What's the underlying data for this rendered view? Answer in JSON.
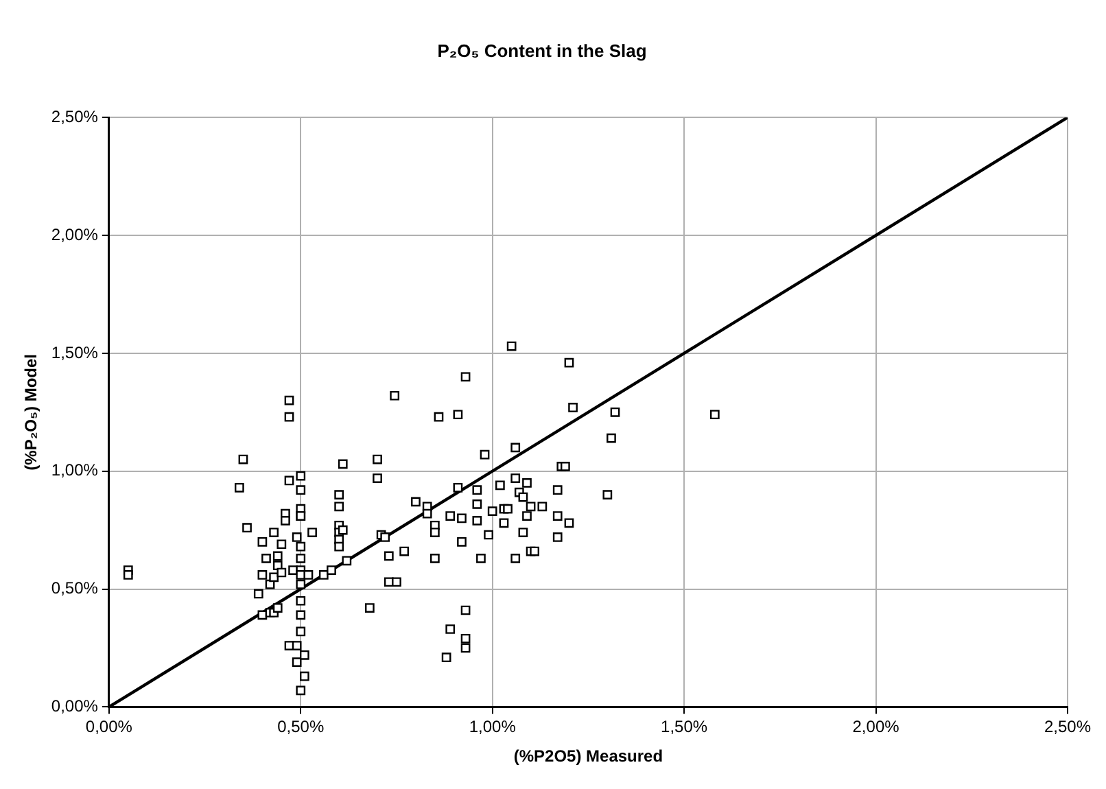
{
  "chart_data": {
    "type": "scatter",
    "title": "P₂O₅ Content in the Slag",
    "xlabel": "(%P2O5) Measured",
    "ylabel": "(%P₂O₅) Model",
    "xlim": [
      0,
      2.5
    ],
    "ylim": [
      0,
      2.5
    ],
    "xticks": [
      {
        "value": 0,
        "label": "0,00%"
      },
      {
        "value": 0.5,
        "label": "0,50%"
      },
      {
        "value": 1,
        "label": "1,00%"
      },
      {
        "value": 1.5,
        "label": "1,50%"
      },
      {
        "value": 2,
        "label": "2,00%"
      },
      {
        "value": 2.5,
        "label": "2,50%"
      }
    ],
    "yticks": [
      {
        "value": 0,
        "label": "0,00%"
      },
      {
        "value": 0.5,
        "label": "0,50%"
      },
      {
        "value": 1,
        "label": "1,00%"
      },
      {
        "value": 1.5,
        "label": "1,50%"
      },
      {
        "value": 2,
        "label": "2,00%"
      },
      {
        "value": 2.5,
        "label": "2,50%"
      }
    ],
    "grid": true,
    "legend": false,
    "marker": "square",
    "series": [
      {
        "color": "#000000",
        "x": [
          0.05,
          0.05,
          0.34,
          0.35,
          0.36,
          0.39,
          0.4,
          0.4,
          0.4,
          0.41,
          0.42,
          0.42,
          0.43,
          0.43,
          0.43,
          0.44,
          0.44,
          0.44,
          0.45,
          0.45,
          0.46,
          0.46,
          0.47,
          0.47,
          0.47,
          0.47,
          0.48,
          0.49,
          0.49,
          0.49,
          0.5,
          0.5,
          0.5,
          0.5,
          0.5,
          0.5,
          0.5,
          0.5,
          0.5,
          0.5,
          0.5,
          0.5,
          0.5,
          0.5,
          0.51,
          0.51,
          0.52,
          0.53,
          0.56,
          0.58,
          0.6,
          0.6,
          0.6,
          0.6,
          0.6,
          0.6,
          0.61,
          0.61,
          0.62,
          0.68,
          0.7,
          0.7,
          0.71,
          0.72,
          0.73,
          0.73,
          0.745,
          0.75,
          0.77,
          0.8,
          0.83,
          0.83,
          0.85,
          0.85,
          0.85,
          0.86,
          0.88,
          0.89,
          0.89,
          0.91,
          0.91,
          0.92,
          0.92,
          0.93,
          0.93,
          0.93,
          0.93,
          0.96,
          0.96,
          0.96,
          0.97,
          0.98,
          0.99,
          1.0,
          1.02,
          1.03,
          1.03,
          1.04,
          1.05,
          1.06,
          1.06,
          1.06,
          1.07,
          1.08,
          1.08,
          1.09,
          1.09,
          1.1,
          1.1,
          1.11,
          1.13,
          1.17,
          1.17,
          1.17,
          1.18,
          1.19,
          1.2,
          1.2,
          1.21,
          1.3,
          1.31,
          1.32,
          1.58
        ],
        "values": [
          0.58,
          0.56,
          0.93,
          1.05,
          0.76,
          0.48,
          0.7,
          0.56,
          0.39,
          0.63,
          0.52,
          0.4,
          0.74,
          0.55,
          0.4,
          0.64,
          0.6,
          0.42,
          0.69,
          0.57,
          0.82,
          0.79,
          1.3,
          1.23,
          0.96,
          0.26,
          0.58,
          0.72,
          0.19,
          0.26,
          0.98,
          0.92,
          0.84,
          0.81,
          0.68,
          0.63,
          0.58,
          0.52,
          0.45,
          0.39,
          0.32,
          0.07,
          0.56,
          0.81,
          0.22,
          0.13,
          0.56,
          0.74,
          0.56,
          0.58,
          0.9,
          0.85,
          0.77,
          0.74,
          0.71,
          0.68,
          1.03,
          0.75,
          0.62,
          0.42,
          1.05,
          0.97,
          0.73,
          0.72,
          0.64,
          0.53,
          1.32,
          0.53,
          0.66,
          0.87,
          0.85,
          0.82,
          0.77,
          0.74,
          0.63,
          1.23,
          0.21,
          0.81,
          0.33,
          1.24,
          0.93,
          0.8,
          0.7,
          1.4,
          0.41,
          0.29,
          0.25,
          0.92,
          0.86,
          0.79,
          0.63,
          1.07,
          0.73,
          0.83,
          0.94,
          0.84,
          0.78,
          0.84,
          1.53,
          0.97,
          1.1,
          0.63,
          0.91,
          0.89,
          0.74,
          0.95,
          0.81,
          0.85,
          0.66,
          0.66,
          0.85,
          0.92,
          0.81,
          0.72,
          1.02,
          1.02,
          1.46,
          0.78,
          1.27,
          0.9,
          1.14,
          1.25,
          1.24
        ]
      },
      {
        "type": "line",
        "color": "#000000",
        "x": [
          0,
          2.5
        ],
        "values": [
          0,
          2.5
        ],
        "marker": "none"
      }
    ]
  }
}
